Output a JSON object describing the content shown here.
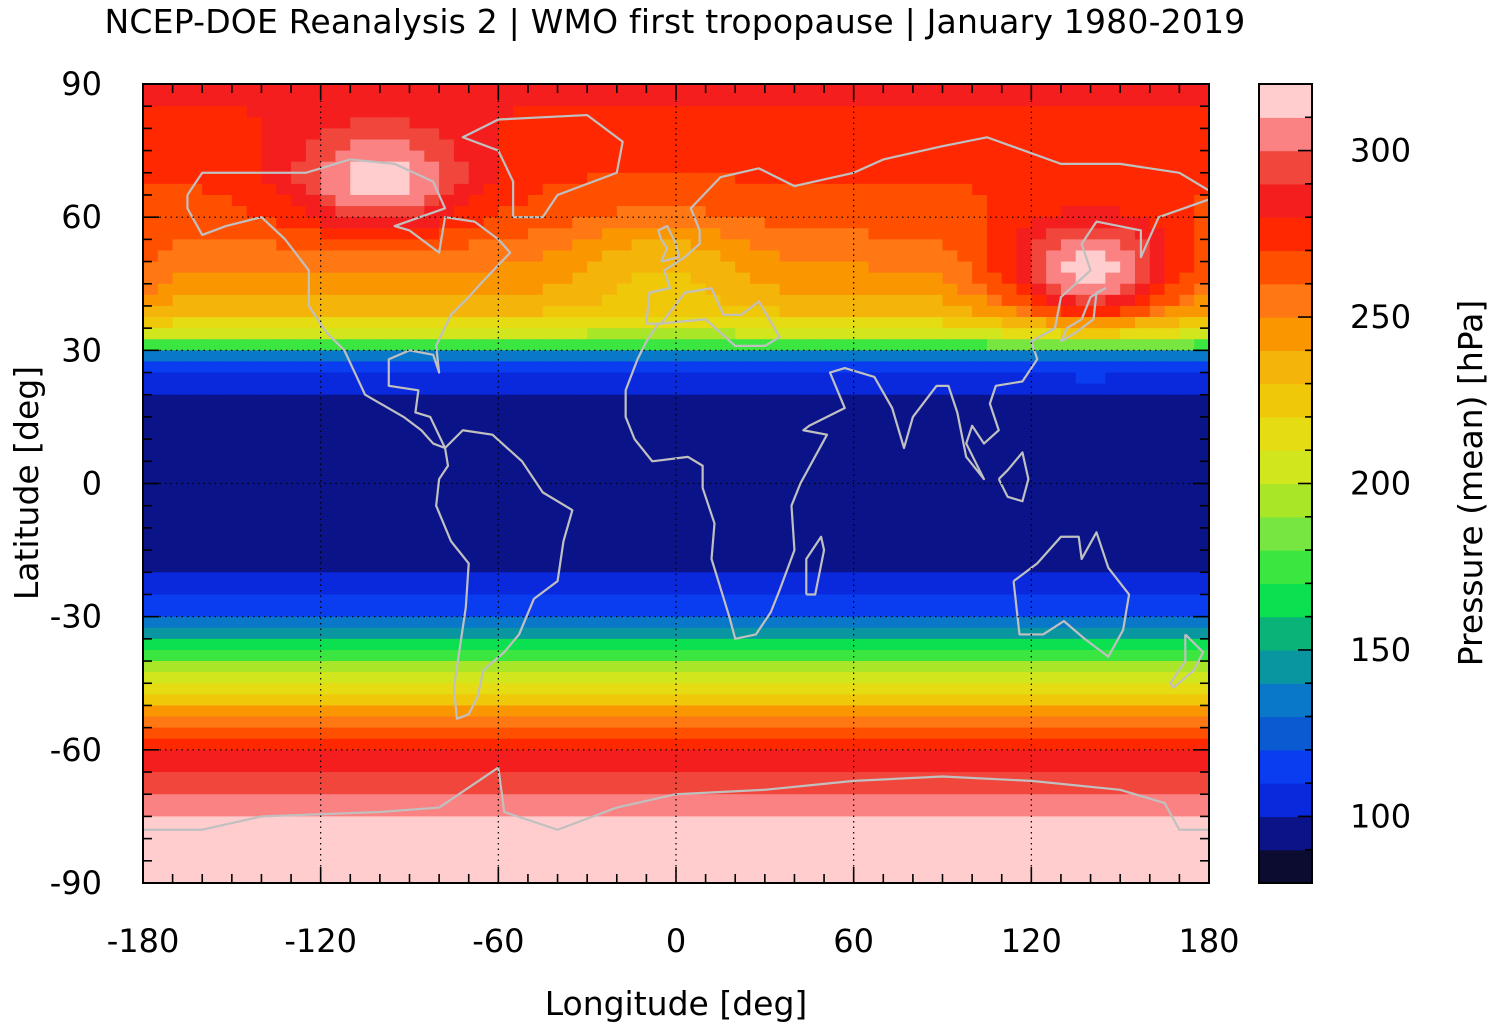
{
  "chart_data": {
    "type": "heatmap",
    "title": "NCEP-DOE Reanalysis 2 | WMO first tropopause | January 1980-2019",
    "xlabel": "Longitude [deg]",
    "ylabel": "Latitude [deg]",
    "colorbar_label": "Pressure (mean) [hPa]",
    "xlim": [
      -180,
      180
    ],
    "ylim": [
      -90,
      90
    ],
    "xticks": [
      "-180",
      "-120",
      "-60",
      "0",
      "60",
      "120",
      "180"
    ],
    "yticks": [
      "90",
      "60",
      "30",
      "0",
      "-30",
      "-60",
      "-90"
    ],
    "colorbar_ticks": [
      "100",
      "150",
      "200",
      "250",
      "300"
    ],
    "colorbar_range": [
      80,
      320
    ],
    "grid": "dotted",
    "colormap": [
      "#0c0c30",
      "#0a1488",
      "#0a28dc",
      "#0a3cf0",
      "#0a5ad2",
      "#0a78c8",
      "#0a96a0",
      "#0ab478",
      "#0ae050",
      "#3ce640",
      "#78e640",
      "#aae628",
      "#d2e61e",
      "#e6dc14",
      "#f0c80a",
      "#f5b40a",
      "#fa9600",
      "#ff7814",
      "#ff5000",
      "#ff2800",
      "#f51e1e",
      "#f0463c",
      "#fa8282",
      "#ffcdcd"
    ],
    "zonal_mean_profile": {
      "lat": [
        90,
        75,
        60,
        45,
        38,
        32,
        28,
        20,
        10,
        0,
        -10,
        -20,
        -28,
        -34,
        -40,
        -48,
        -55,
        -62,
        -70,
        -78,
        -90
      ],
      "pressure_hPa": [
        282,
        275,
        265,
        245,
        230,
        190,
        120,
        98,
        92,
        92,
        92,
        100,
        115,
        150,
        185,
        225,
        260,
        285,
        300,
        315,
        318
      ]
    },
    "features": [
      {
        "lon": -100,
        "lat": 68,
        "pressure_hPa": 315
      },
      {
        "lon": 140,
        "lat": 47,
        "pressure_hPa": 315
      },
      {
        "lon": -5,
        "lat": 50,
        "pressure_hPa": 232
      },
      {
        "lon": 130,
        "lat": 0,
        "pressure_hPa": 100
      },
      {
        "lon": 25,
        "lat": -20,
        "pressure_hPa": 100
      },
      {
        "lon": -150,
        "lat": -22,
        "pressure_hPa": 103
      }
    ],
    "overlay": "coastlines (grey)"
  }
}
